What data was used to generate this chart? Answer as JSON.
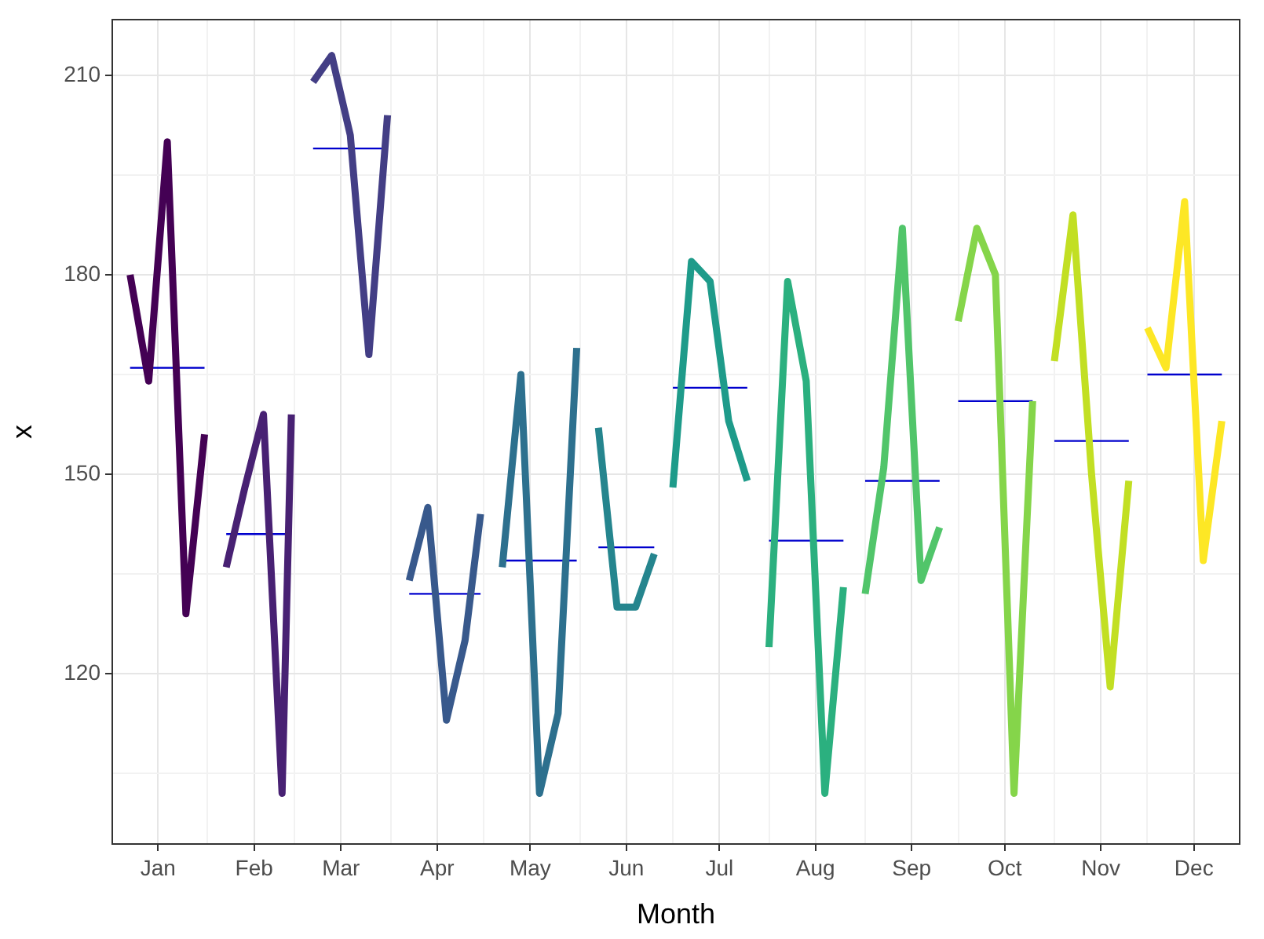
{
  "chart_data": {
    "type": "line",
    "xlabel": "Month",
    "ylabel": "x",
    "xlim": [
      "--01-01",
      "--12-31"
    ],
    "ylim": [
      94.25,
      218.5
    ],
    "xticks": [
      {
        "value": "--01-16",
        "label": "Jan"
      },
      {
        "value": "--02-01",
        "label": null
      },
      {
        "value": "--02-16",
        "label": "Feb"
      },
      {
        "value": "--03-01",
        "label": null
      },
      {
        "value": "--03-16",
        "label": "Mar"
      },
      {
        "value": "--04-01",
        "label": null
      },
      {
        "value": "--04-16",
        "label": "Apr"
      },
      {
        "value": "--05-01",
        "label": null
      },
      {
        "value": "--05-16",
        "label": "May"
      },
      {
        "value": "--06-01",
        "label": null
      },
      {
        "value": "--06-16",
        "label": "Jun"
      },
      {
        "value": "--07-01",
        "label": null
      },
      {
        "value": "--07-16",
        "label": "Jul"
      },
      {
        "value": "--08-01",
        "label": null
      },
      {
        "value": "--08-16",
        "label": "Aug"
      },
      {
        "value": "--09-01",
        "label": null
      },
      {
        "value": "--09-16",
        "label": "Sep"
      },
      {
        "value": "--10-01",
        "label": null
      },
      {
        "value": "--10-16",
        "label": "Oct"
      },
      {
        "value": "--11-01",
        "label": null
      },
      {
        "value": "--11-16",
        "label": "Nov"
      },
      {
        "value": "--12-01",
        "label": null
      },
      {
        "value": "--12-16",
        "label": "Dec"
      }
    ],
    "yticks": [
      {
        "value": 105,
        "label": null
      },
      120,
      {
        "value": 135,
        "label": null
      },
      150,
      {
        "value": 165,
        "label": null
      },
      180,
      {
        "value": 195,
        "label": null
      },
      210
    ],
    "grid": true,
    "legend": false,
    "marker": "none",
    "line_style": "solid",
    "series": [
      {
        "color": "#440154",
        "x": [
          "--01-07",
          "--01-13",
          "--01-19",
          "--01-25",
          "--01-31"
        ],
        "values": [
          180,
          164,
          200,
          129,
          156
        ]
      },
      {
        "color": "#482173",
        "x": [
          "--02-07",
          "--02-13",
          "--02-19",
          "--02-25",
          "--02-28"
        ],
        "values": [
          136,
          148,
          159,
          102,
          159
        ]
      },
      {
        "color": "#433e85",
        "x": [
          "--03-07",
          "--03-13",
          "--03-19",
          "--03-25",
          "--03-31"
        ],
        "values": [
          209,
          213,
          201,
          168,
          204
        ]
      },
      {
        "color": "#38598c",
        "x": [
          "--04-07",
          "--04-13",
          "--04-19",
          "--04-25",
          "--04-30"
        ],
        "values": [
          134,
          145,
          113,
          125,
          144
        ]
      },
      {
        "color": "#2d708e",
        "x": [
          "--05-07",
          "--05-13",
          "--05-19",
          "--05-25",
          "--05-31"
        ],
        "values": [
          136,
          165,
          102,
          114,
          169
        ]
      },
      {
        "color": "#25858e",
        "x": [
          "--06-07",
          "--06-13",
          "--06-19",
          "--06-25"
        ],
        "values": [
          157,
          130,
          130,
          138
        ]
      },
      {
        "color": "#1e9b8a",
        "x": [
          "--07-01",
          "--07-07",
          "--07-13",
          "--07-19",
          "--07-25"
        ],
        "values": [
          148,
          182,
          179,
          158,
          149
        ]
      },
      {
        "color": "#2bb07f",
        "x": [
          "--08-01",
          "--08-07",
          "--08-13",
          "--08-19",
          "--08-25"
        ],
        "values": [
          124,
          179,
          164,
          102,
          133
        ]
      },
      {
        "color": "#51c56a",
        "x": [
          "--09-01",
          "--09-07",
          "--09-13",
          "--09-19",
          "--09-25"
        ],
        "values": [
          132,
          151,
          187,
          134,
          142
        ]
      },
      {
        "color": "#85d54a",
        "x": [
          "--10-01",
          "--10-07",
          "--10-13",
          "--10-19",
          "--10-25"
        ],
        "values": [
          173,
          187,
          180,
          102,
          161
        ]
      },
      {
        "color": "#c2df23",
        "x": [
          "--11-01",
          "--11-07",
          "--11-13",
          "--11-19",
          "--11-25"
        ],
        "values": [
          167,
          189,
          150,
          118,
          149
        ]
      },
      {
        "color": "#fde725",
        "x": [
          "--12-01",
          "--12-07",
          "--12-13",
          "--12-19",
          "--12-25"
        ],
        "values": [
          172,
          166,
          191,
          137,
          158
        ]
      },
      {
        "color": "#0000cd",
        "x": [
          "--01-07",
          "--01-31"
        ],
        "values": [
          166,
          166
        ]
      },
      {
        "color": "#0000cd",
        "x": [
          "--02-07",
          "--02-28"
        ],
        "values": [
          141,
          141
        ]
      },
      {
        "color": "#0000cd",
        "x": [
          "--03-07",
          "--03-31"
        ],
        "values": [
          199,
          199
        ]
      },
      {
        "color": "#0000cd",
        "x": [
          "--04-07",
          "--04-30"
        ],
        "values": [
          132,
          132
        ]
      },
      {
        "color": "#0000cd",
        "x": [
          "--05-07",
          "--05-31"
        ],
        "values": [
          137,
          137
        ]
      },
      {
        "color": "#0000cd",
        "x": [
          "--06-07",
          "--06-25"
        ],
        "values": [
          139,
          139
        ]
      },
      {
        "color": "#0000cd",
        "x": [
          "--07-01",
          "--07-25"
        ],
        "values": [
          163,
          163
        ]
      },
      {
        "color": "#0000cd",
        "x": [
          "--08-01",
          "--08-25"
        ],
        "values": [
          140,
          140
        ]
      },
      {
        "color": "#0000cd",
        "x": [
          "--09-01",
          "--09-25"
        ],
        "values": [
          149,
          149
        ]
      },
      {
        "color": "#0000cd",
        "x": [
          "--10-01",
          "--10-25"
        ],
        "values": [
          161,
          161
        ]
      },
      {
        "color": "#0000cd",
        "x": [
          "--11-01",
          "--11-25"
        ],
        "values": [
          155,
          155
        ]
      },
      {
        "color": "#0000cd",
        "x": [
          "--12-01",
          "--12-25"
        ],
        "values": [
          165,
          165
        ]
      }
    ]
  }
}
